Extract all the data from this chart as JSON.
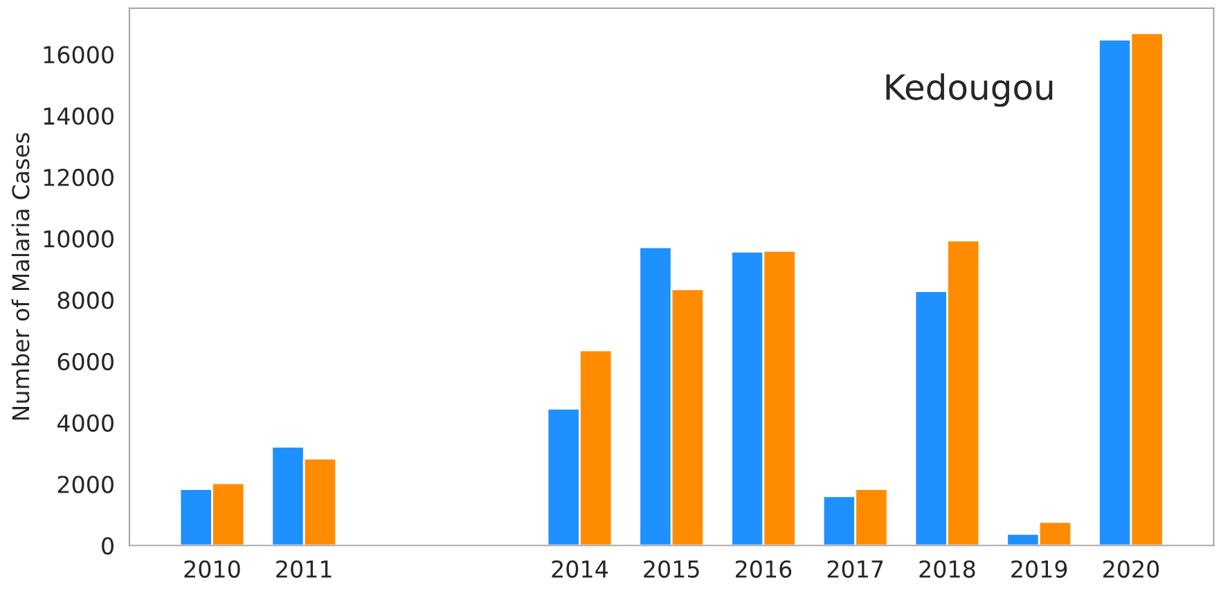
{
  "chart_data": {
    "type": "bar",
    "ylabel": "Number of Malaria Cases",
    "annotations": [
      "Kedougou"
    ],
    "x": [
      2010,
      2011,
      2014,
      2015,
      2016,
      2017,
      2018,
      2019,
      2020
    ],
    "series": [
      {
        "color": "#1e90ff",
        "values": [
          1840,
          3220,
          4460,
          9720,
          9570,
          1610,
          8290,
          380,
          16480
        ]
      },
      {
        "color": "#ff8c00",
        "values": [
          2030,
          2830,
          6360,
          8350,
          9600,
          1840,
          9940,
          770,
          16690
        ]
      }
    ],
    "xlim": [
      2009.1,
      2020.9
    ],
    "xticks": [
      2010,
      2011,
      2014,
      2015,
      2016,
      2017,
      2018,
      2019,
      2020
    ],
    "ylim": [
      0,
      17500
    ],
    "yticks": [
      0,
      2000,
      4000,
      6000,
      8000,
      10000,
      12000,
      14000,
      16000
    ],
    "grid": false,
    "legend": false
  }
}
